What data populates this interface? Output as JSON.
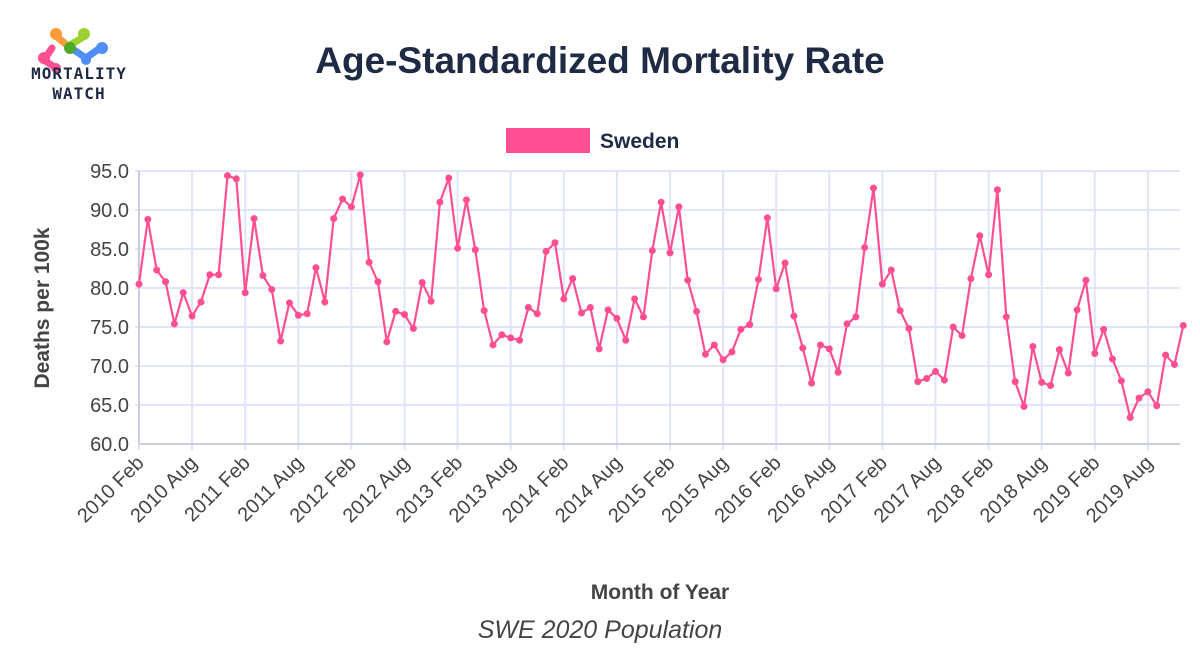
{
  "logo": {
    "line1": "MORTALITY",
    "line2": "WATCH"
  },
  "subtitle": "SWE 2020 Population",
  "colors": {
    "series": "#ff4f92",
    "grid": "#dfe4f8",
    "axis": "#c9cde0",
    "text": "#1f2a44"
  },
  "chart_data": {
    "type": "line",
    "title": "Age-Standardized Mortality Rate",
    "xlabel": "Month of Year",
    "ylabel": "Deaths per 100k",
    "ylim": [
      60,
      95
    ],
    "yticks": [
      "60.0",
      "65.0",
      "70.0",
      "75.0",
      "80.0",
      "85.0",
      "90.0",
      "95.0"
    ],
    "ytick_values": [
      60,
      65,
      70,
      75,
      80,
      85,
      90,
      95
    ],
    "grid": true,
    "legend": {
      "placement": "top-center",
      "entries": [
        "Sweden"
      ]
    },
    "x_start": "2010 Feb",
    "x_end": "2019 Dec",
    "xticks": [
      "2010 Feb",
      "2010 Aug",
      "2011 Feb",
      "2011 Aug",
      "2012 Feb",
      "2012 Aug",
      "2013 Feb",
      "2013 Aug",
      "2014 Feb",
      "2014 Aug",
      "2015 Feb",
      "2015 Aug",
      "2016 Feb",
      "2016 Aug",
      "2017 Feb",
      "2017 Aug",
      "2018 Feb",
      "2018 Aug",
      "2019 Feb",
      "2019 Aug"
    ],
    "series": [
      {
        "name": "Sweden",
        "values": [
          80.5,
          88.8,
          82.3,
          80.8,
          75.4,
          79.4,
          76.4,
          78.2,
          81.7,
          81.7,
          94.4,
          94.0,
          79.4,
          88.9,
          81.6,
          79.8,
          73.2,
          78.1,
          76.5,
          76.7,
          82.6,
          78.2,
          88.9,
          91.4,
          90.4,
          94.5,
          83.3,
          80.8,
          73.1,
          77.0,
          76.6,
          74.8,
          80.7,
          78.3,
          91.0,
          94.1,
          85.1,
          91.3,
          84.9,
          77.1,
          72.7,
          74.0,
          73.6,
          73.3,
          77.5,
          76.7,
          84.7,
          85.8,
          78.6,
          81.2,
          76.8,
          77.5,
          72.2,
          77.2,
          76.1,
          73.3,
          78.6,
          76.3,
          84.8,
          91.0,
          84.5,
          90.4,
          81.0,
          77.0,
          71.5,
          72.7,
          70.8,
          71.8,
          74.7,
          75.3,
          81.1,
          89.0,
          79.9,
          83.2,
          76.4,
          72.3,
          67.8,
          72.7,
          72.2,
          69.2,
          75.4,
          76.3,
          85.2,
          92.8,
          80.5,
          82.3,
          77.1,
          74.8,
          68.0,
          68.4,
          69.3,
          68.2,
          75.0,
          73.9,
          81.2,
          86.7,
          81.7,
          92.6,
          76.3,
          68.0,
          64.8,
          72.5,
          67.9,
          67.5,
          72.1,
          69.1,
          77.2,
          81.0,
          71.6,
          74.7,
          70.9,
          68.1,
          63.4,
          65.9,
          66.7,
          64.9,
          71.4,
          70.2,
          75.2
        ]
      }
    ]
  }
}
